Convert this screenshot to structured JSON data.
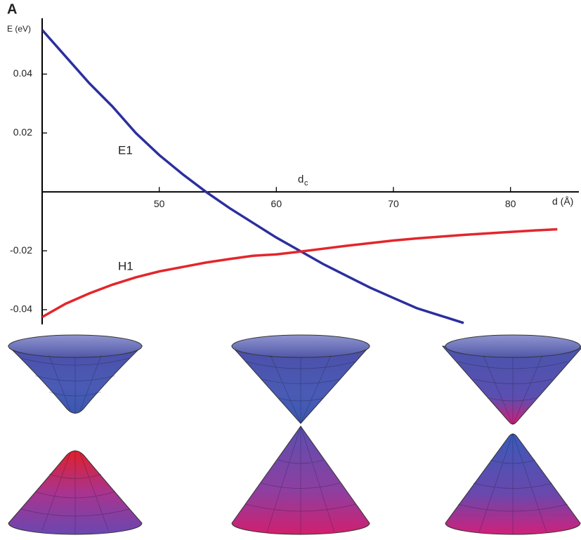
{
  "chart_data": {
    "type": "line",
    "panel_label": "A",
    "y_label": "E (eV)",
    "x_label": "d (Å)",
    "annotations": {
      "e1": "E1",
      "h1": "H1",
      "dc": "d",
      "dc_sub": "c"
    },
    "x": [
      40,
      42,
      44,
      46,
      48,
      50,
      52,
      54,
      56,
      58,
      60,
      62,
      64,
      66,
      68,
      70,
      72,
      74,
      76,
      78,
      80,
      82,
      84
    ],
    "series": [
      {
        "name": "E1",
        "color": "#2b2f9e",
        "values": [
          0.055,
          0.046,
          0.037,
          0.029,
          0.02,
          0.0125,
          0.006,
          0.0,
          -0.0055,
          -0.0105,
          -0.0155,
          -0.02,
          -0.0245,
          -0.0285,
          -0.0325,
          -0.036,
          -0.0395,
          -0.042,
          -0.0445,
          null,
          null,
          null,
          null
        ]
      },
      {
        "name": "H1",
        "color": "#e3262b",
        "values": [
          -0.0425,
          -0.038,
          -0.0345,
          -0.0315,
          -0.029,
          -0.027,
          -0.0255,
          -0.024,
          -0.0228,
          -0.0217,
          -0.0212,
          -0.0203,
          -0.0193,
          -0.0183,
          -0.0174,
          -0.0165,
          -0.0158,
          -0.0152,
          -0.0146,
          -0.0141,
          -0.0136,
          -0.0131,
          -0.0127
        ]
      }
    ],
    "xlim": [
      40,
      85
    ],
    "ylim": [
      -0.045,
      0.058
    ],
    "xticks": [
      50,
      60,
      70,
      80
    ],
    "yticks": [
      0.04,
      0.02,
      -0.02,
      -0.04
    ]
  }
}
